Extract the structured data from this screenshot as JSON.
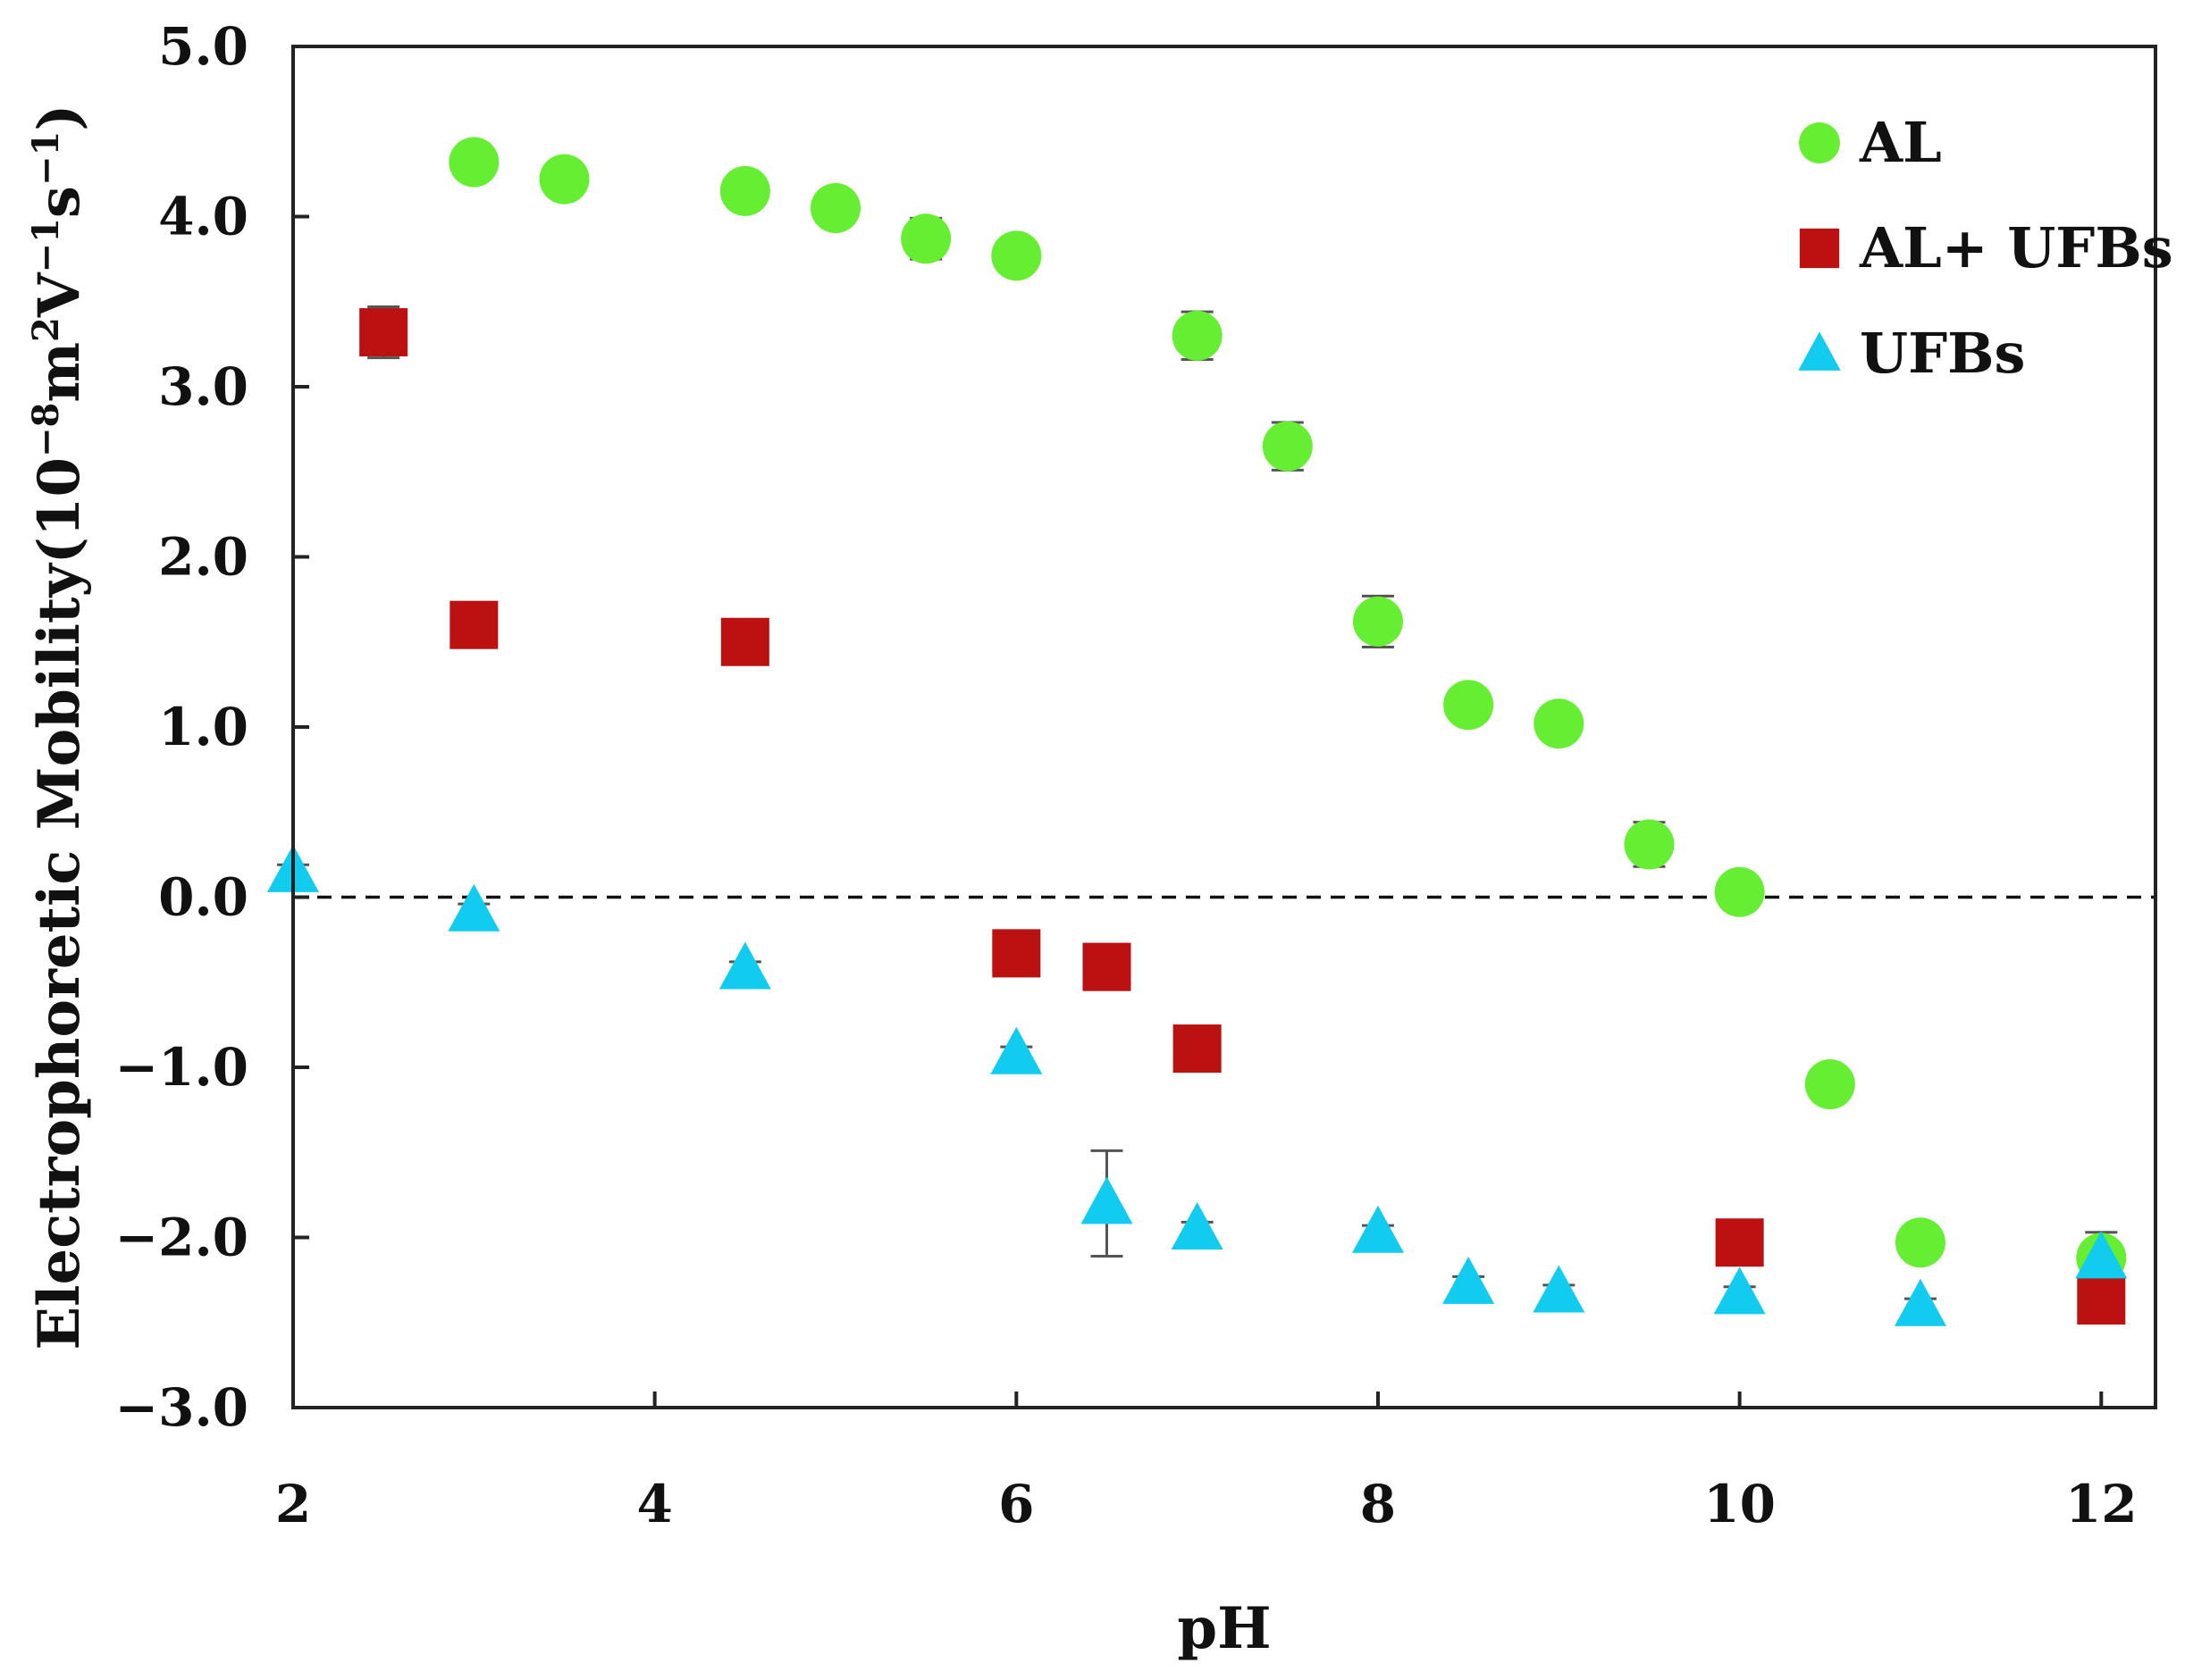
{
  "chart_data": {
    "type": "scatter",
    "title": "",
    "xlabel": "pH",
    "ylabel": {
      "prefix": "Electrophoretic Mobility(10",
      "exp1": "−8",
      "mid1": "m",
      "exp2": "2",
      "mid2": "V",
      "exp3": "−1",
      "mid3": "s",
      "exp4": "−1",
      "suffix": ")"
    },
    "xlim": [
      2,
      12.3
    ],
    "ylim": [
      -3.0,
      5.0
    ],
    "xticks": [
      2,
      4,
      6,
      8,
      10,
      12
    ],
    "xtick_labels": [
      "2",
      "4",
      "6",
      "8",
      "10",
      "12"
    ],
    "yticks": [
      -3,
      -2,
      -1,
      0,
      1,
      2,
      3,
      4,
      5
    ],
    "ytick_labels": [
      "−3.0",
      "−2.0",
      "−1.0",
      "0.0",
      "1.0",
      "2.0",
      "3.0",
      "4.0",
      "5.0"
    ],
    "reference_line": {
      "y": 0,
      "style": "dashed"
    },
    "legend_position": "top-right",
    "series": [
      {
        "name": "AL",
        "marker": "circle",
        "color": "#66EE33",
        "points": [
          {
            "x": 3,
            "y": 4.32,
            "err": 0.05
          },
          {
            "x": 3.5,
            "y": 4.22,
            "err": 0.04
          },
          {
            "x": 4.5,
            "y": 4.15,
            "err": 0.04
          },
          {
            "x": 5,
            "y": 4.05,
            "err": 0.04
          },
          {
            "x": 5.5,
            "y": 3.87,
            "err": 0.12
          },
          {
            "x": 6,
            "y": 3.77,
            "err": 0.05
          },
          {
            "x": 7,
            "y": 3.3,
            "err": 0.14
          },
          {
            "x": 7.5,
            "y": 2.65,
            "err": 0.14
          },
          {
            "x": 8,
            "y": 1.62,
            "err": 0.15
          },
          {
            "x": 8.5,
            "y": 1.13,
            "err": 0.04
          },
          {
            "x": 9,
            "y": 1.02,
            "err": 0.04
          },
          {
            "x": 9.5,
            "y": 0.31,
            "err": 0.13
          },
          {
            "x": 10,
            "y": 0.03,
            "err": 0.03
          },
          {
            "x": 10.5,
            "y": -1.1,
            "err": 0.04
          },
          {
            "x": 11,
            "y": -2.03,
            "err": 0.04
          },
          {
            "x": 12,
            "y": -2.12,
            "err": 0.15
          }
        ]
      },
      {
        "name": "AL+ UFBs",
        "marker": "square",
        "color": "#BB1111",
        "points": [
          {
            "x": 2.5,
            "y": 3.32,
            "err": 0.15
          },
          {
            "x": 3,
            "y": 1.6,
            "err": 0.04
          },
          {
            "x": 4.5,
            "y": 1.5,
            "err": 0.04
          },
          {
            "x": 6,
            "y": -0.33,
            "err": 0.04
          },
          {
            "x": 6.5,
            "y": -0.41,
            "err": 0.04
          },
          {
            "x": 7,
            "y": -0.89,
            "err": 0.04
          },
          {
            "x": 10,
            "y": -2.03,
            "err": 0.04
          },
          {
            "x": 12,
            "y": -2.37,
            "err": 0.12
          }
        ]
      },
      {
        "name": "UFBs",
        "marker": "triangle",
        "color": "#11CCEE",
        "points": [
          {
            "x": 2,
            "y": 0.15,
            "err": 0.04
          },
          {
            "x": 3,
            "y": -0.08,
            "err": 0.04
          },
          {
            "x": 4.5,
            "y": -0.42,
            "err": 0.04
          },
          {
            "x": 6,
            "y": -0.92,
            "err": 0.04
          },
          {
            "x": 6.5,
            "y": -1.8,
            "err": 0.31
          },
          {
            "x": 7,
            "y": -1.95,
            "err": 0.04
          },
          {
            "x": 8,
            "y": -1.97,
            "err": 0.04
          },
          {
            "x": 8.5,
            "y": -2.27,
            "err": 0.04
          },
          {
            "x": 9,
            "y": -2.32,
            "err": 0.04
          },
          {
            "x": 10,
            "y": -2.33,
            "err": 0.04
          },
          {
            "x": 11,
            "y": -2.4,
            "err": 0.04
          },
          {
            "x": 12,
            "y": -2.12,
            "err": 0.04
          }
        ]
      }
    ]
  }
}
